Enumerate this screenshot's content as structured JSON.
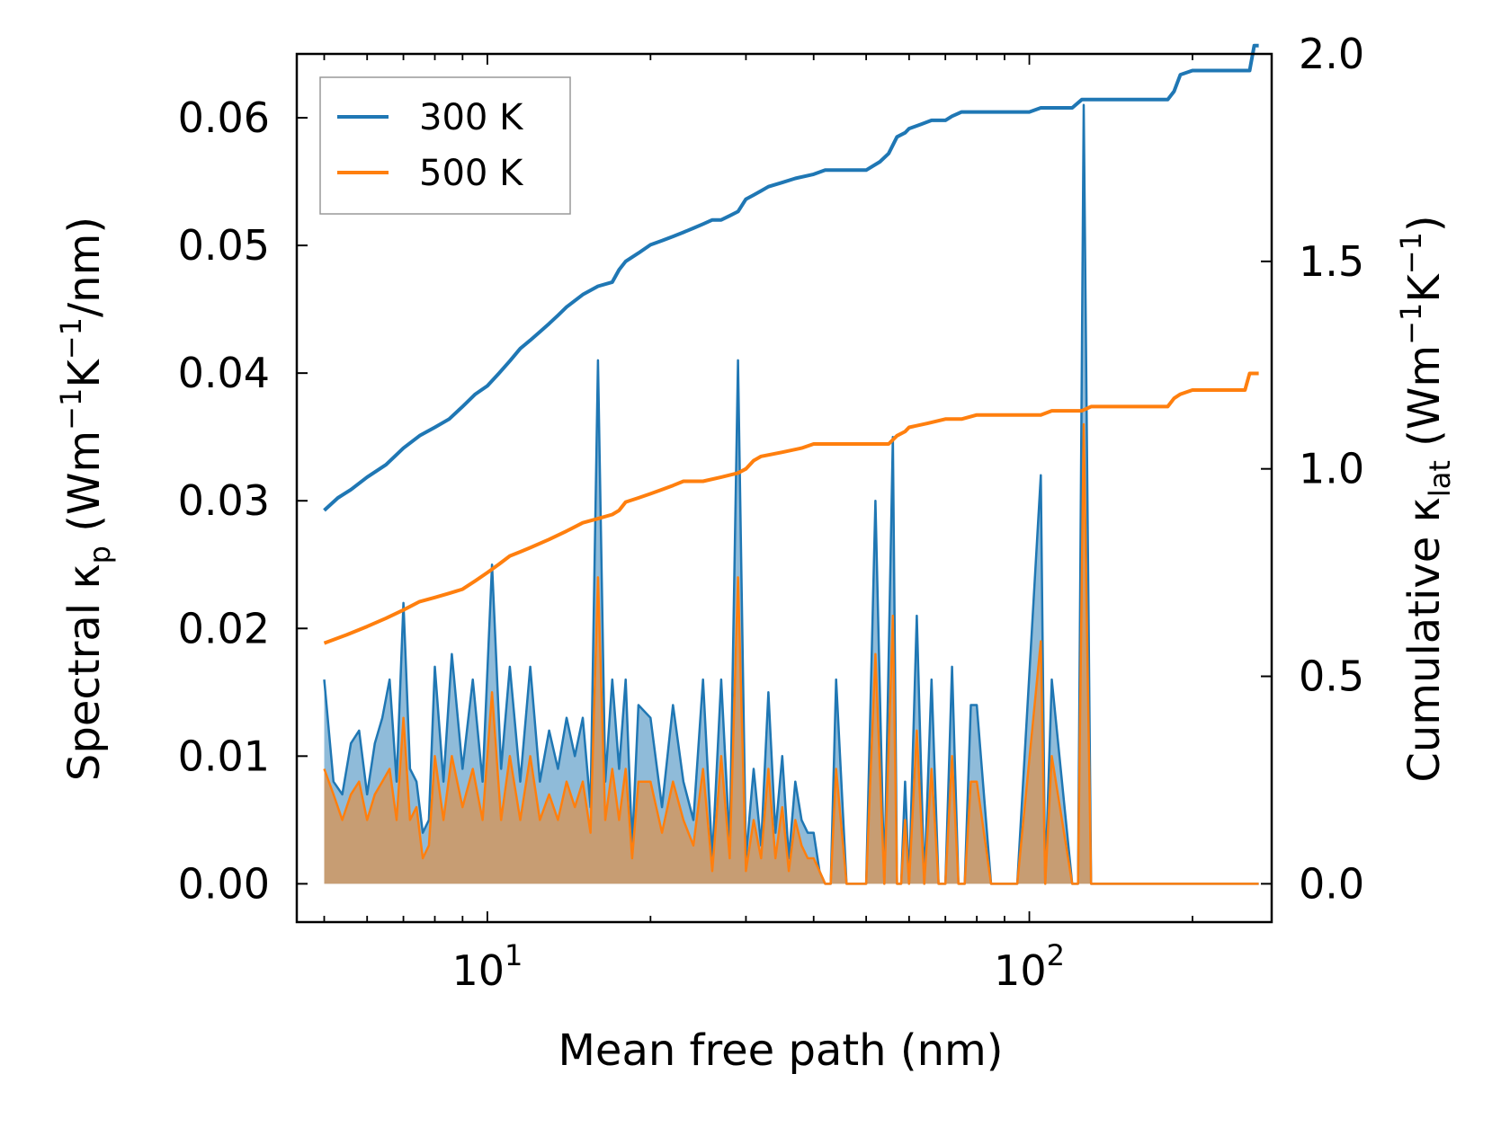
{
  "chart_data": {
    "type": "line",
    "xscale": "log",
    "xlabel": "Mean free path (nm)",
    "ylabel_left": {
      "main": "Spectral κ",
      "sub": "p",
      "rest": " (Wm",
      "sup1": "−1",
      "mid": "K",
      "sup2": "−1",
      "end": "/nm)"
    },
    "ylabel_right": {
      "main": "Cumulative κ",
      "sub": "lat",
      "rest": " (Wm",
      "sup1": "−1",
      "mid": "K",
      "sup2": "−1",
      "end": ")"
    },
    "xlim": [
      4.45,
      280
    ],
    "ylim_left": [
      -0.003,
      0.065
    ],
    "ylim_right": [
      -0.0923,
      2.0
    ],
    "x_ticks": [
      {
        "value": 10,
        "base": "10",
        "exp": "1"
      },
      {
        "value": 100,
        "base": "10",
        "exp": "2"
      }
    ],
    "yticks_left": [
      "0.00",
      "0.01",
      "0.02",
      "0.03",
      "0.04",
      "0.05",
      "0.06"
    ],
    "yticks_right": [
      "0.0",
      "0.5",
      "1.0",
      "1.5",
      "2.0"
    ],
    "legend": {
      "position": "top-left",
      "entries": [
        {
          "label": "300 K",
          "color": "#1f77b4"
        },
        {
          "label": "500 K",
          "color": "#ff7f0e"
        }
      ]
    },
    "colors": {
      "s300": "#1f77b4",
      "s500": "#ff7f0e",
      "fill300": "#1f77b4",
      "fill500": "#ff7f0e"
    },
    "spectral": {
      "x": [
        5.0,
        5.2,
        5.4,
        5.6,
        5.8,
        6.0,
        6.2,
        6.4,
        6.6,
        6.8,
        7.0,
        7.2,
        7.4,
        7.6,
        7.8,
        8.0,
        8.3,
        8.6,
        9.0,
        9.4,
        9.8,
        10.2,
        10.6,
        11.0,
        11.5,
        12.0,
        12.5,
        13.0,
        13.5,
        14.0,
        14.5,
        15.0,
        15.5,
        16.0,
        16.5,
        17.0,
        17.5,
        18.0,
        18.5,
        19.0,
        20.0,
        21.0,
        22.0,
        23.0,
        24.0,
        25.0,
        26.0,
        27.0,
        28.0,
        29.0,
        30.0,
        31.0,
        32.0,
        33.0,
        34.0,
        35.0,
        36.0,
        37.0,
        38.0,
        39.0,
        40.0,
        41.0,
        42.0,
        43.0,
        44.0,
        46.0,
        50.0,
        52.0,
        54.0,
        56.0,
        57.0,
        58.0,
        59.0,
        60.0,
        62.0,
        64.0,
        66.0,
        68.0,
        70.0,
        72.0,
        74.0,
        76.0,
        78.0,
        80.0,
        85.0,
        95.0,
        105.0,
        107.0,
        110.0,
        120.0,
        123.0,
        126.0,
        130.0,
        140.0,
        175.0,
        185.0,
        190.0,
        195.0,
        200.0,
        205.0,
        250.0,
        255.0,
        260.0,
        265.0
      ],
      "k300": [
        0.016,
        0.008,
        0.007,
        0.011,
        0.012,
        0.007,
        0.011,
        0.013,
        0.016,
        0.008,
        0.022,
        0.009,
        0.008,
        0.004,
        0.005,
        0.017,
        0.008,
        0.018,
        0.009,
        0.016,
        0.008,
        0.025,
        0.009,
        0.017,
        0.008,
        0.017,
        0.008,
        0.012,
        0.009,
        0.013,
        0.01,
        0.013,
        0.006,
        0.041,
        0.008,
        0.016,
        0.009,
        0.016,
        0.003,
        0.014,
        0.013,
        0.006,
        0.014,
        0.008,
        0.005,
        0.016,
        0.002,
        0.016,
        0.003,
        0.041,
        0.002,
        0.009,
        0.003,
        0.015,
        0.004,
        0.01,
        0.002,
        0.008,
        0.005,
        0.004,
        0.004,
        0.001,
        0.0,
        0.0,
        0.016,
        0.0,
        0.0,
        0.03,
        0.0,
        0.035,
        0.0,
        0.0,
        0.008,
        0.0,
        0.021,
        0.0,
        0.016,
        0.0,
        0.0,
        0.017,
        0.0,
        0.0,
        0.014,
        0.014,
        0.0,
        0.0,
        0.032,
        0.0,
        0.016,
        0.0,
        0.0,
        0.061,
        0.0,
        0.0,
        0.0,
        0.0,
        0.0,
        0.0,
        0.0,
        0.0,
        0.0,
        0.0,
        0.0,
        0.0
      ],
      "k500": [
        0.009,
        0.007,
        0.005,
        0.007,
        0.008,
        0.005,
        0.007,
        0.008,
        0.009,
        0.005,
        0.013,
        0.005,
        0.006,
        0.002,
        0.003,
        0.01,
        0.005,
        0.01,
        0.006,
        0.009,
        0.005,
        0.015,
        0.005,
        0.01,
        0.005,
        0.01,
        0.005,
        0.007,
        0.005,
        0.008,
        0.006,
        0.008,
        0.004,
        0.024,
        0.005,
        0.009,
        0.005,
        0.009,
        0.002,
        0.008,
        0.008,
        0.004,
        0.008,
        0.005,
        0.003,
        0.009,
        0.001,
        0.01,
        0.002,
        0.024,
        0.001,
        0.005,
        0.002,
        0.009,
        0.002,
        0.006,
        0.001,
        0.005,
        0.003,
        0.002,
        0.002,
        0.001,
        0.0,
        0.0,
        0.009,
        0.0,
        0.0,
        0.018,
        0.0,
        0.021,
        0.0,
        0.0,
        0.005,
        0.0,
        0.012,
        0.0,
        0.009,
        0.0,
        0.0,
        0.01,
        0.0,
        0.0,
        0.008,
        0.008,
        0.0,
        0.0,
        0.019,
        0.0,
        0.01,
        0.0,
        0.0,
        0.036,
        0.0,
        0.0,
        0.0,
        0.0,
        0.0,
        0.0,
        0.0,
        0.0,
        0.0,
        0.0,
        0.0,
        0.0
      ]
    },
    "cumulative": {
      "x300": [
        5.0,
        5.3,
        5.6,
        6.0,
        6.5,
        7.0,
        7.5,
        8.0,
        8.5,
        9.0,
        9.5,
        10.0,
        10.5,
        11.0,
        11.5,
        12.0,
        12.5,
        13.0,
        13.5,
        14.0,
        15.0,
        16.0,
        17.0,
        17.5,
        18.0,
        19.0,
        20.0,
        21.0,
        22.0,
        23.0,
        24.0,
        25.0,
        26.0,
        27.0,
        28.0,
        29.0,
        30.0,
        31.0,
        32.0,
        33.0,
        35.0,
        37.0,
        40.0,
        42.0,
        45.0,
        50.0,
        53.0,
        55.0,
        57.0,
        59.0,
        60.0,
        63.0,
        66.0,
        70.0,
        72.0,
        75.0,
        78.0,
        80.0,
        90.0,
        100.0,
        105.0,
        110.0,
        120.0,
        125.0,
        130.0,
        150.0,
        180.0,
        185.0,
        190.0,
        200.0,
        220.0,
        250.0,
        255.0,
        260.0,
        265.0
      ],
      "y300": [
        0.9,
        0.93,
        0.95,
        0.98,
        1.01,
        1.05,
        1.08,
        1.1,
        1.12,
        1.15,
        1.18,
        1.2,
        1.23,
        1.26,
        1.29,
        1.31,
        1.33,
        1.35,
        1.37,
        1.39,
        1.42,
        1.44,
        1.45,
        1.48,
        1.5,
        1.52,
        1.54,
        1.55,
        1.56,
        1.57,
        1.58,
        1.59,
        1.6,
        1.6,
        1.61,
        1.62,
        1.65,
        1.66,
        1.67,
        1.68,
        1.69,
        1.7,
        1.71,
        1.72,
        1.72,
        1.72,
        1.74,
        1.76,
        1.8,
        1.81,
        1.82,
        1.83,
        1.84,
        1.84,
        1.85,
        1.86,
        1.86,
        1.86,
        1.86,
        1.86,
        1.87,
        1.87,
        1.87,
        1.89,
        1.89,
        1.89,
        1.89,
        1.91,
        1.95,
        1.96,
        1.96,
        1.96,
        1.96,
        2.02,
        2.02
      ],
      "x500": [
        5.0,
        5.5,
        6.0,
        6.5,
        7.0,
        7.5,
        8.0,
        8.5,
        9.0,
        9.5,
        10.0,
        10.5,
        11.0,
        11.5,
        12.0,
        13.0,
        14.0,
        15.0,
        16.0,
        17.0,
        17.5,
        18.0,
        19.0,
        20.0,
        21.0,
        22.0,
        23.0,
        24.0,
        25.0,
        27.0,
        29.0,
        30.0,
        31.0,
        32.0,
        35.0,
        38.0,
        40.0,
        45.0,
        50.0,
        55.0,
        57.0,
        59.0,
        60.0,
        65.0,
        70.0,
        75.0,
        80.0,
        90.0,
        100.0,
        105.0,
        110.0,
        125.0,
        130.0,
        150.0,
        180.0,
        185.0,
        190.0,
        200.0,
        250.0,
        255.0,
        260.0,
        265.0
      ],
      "y500": [
        0.58,
        0.6,
        0.62,
        0.64,
        0.66,
        0.68,
        0.69,
        0.7,
        0.71,
        0.73,
        0.75,
        0.77,
        0.79,
        0.8,
        0.81,
        0.83,
        0.85,
        0.87,
        0.88,
        0.89,
        0.9,
        0.92,
        0.93,
        0.94,
        0.95,
        0.96,
        0.97,
        0.97,
        0.97,
        0.98,
        0.99,
        1.0,
        1.02,
        1.03,
        1.04,
        1.05,
        1.06,
        1.06,
        1.06,
        1.06,
        1.08,
        1.09,
        1.1,
        1.11,
        1.12,
        1.12,
        1.13,
        1.13,
        1.13,
        1.13,
        1.14,
        1.14,
        1.15,
        1.15,
        1.15,
        1.17,
        1.18,
        1.19,
        1.19,
        1.23,
        1.23,
        1.23
      ]
    }
  }
}
